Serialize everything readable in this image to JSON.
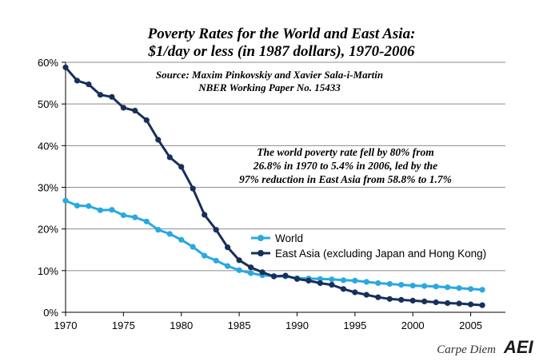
{
  "chart_data": {
    "type": "line",
    "title": "Poverty Rates for the World and East Asia:",
    "subtitle": "$1/day or less  (in 1987 dollars), 1970-2006",
    "source_lines": [
      "Source: Maxim Pinkovskiy and Xavier Sala-i-Martin",
      "NBER Working Paper No. 15433"
    ],
    "annotation_lines": [
      "The world poverty rate fell by 80% from",
      "26.8% in 1970 to 5.4% in 2006, led by the",
      "97% reduction in East Asia from 58.8% to 1.7%"
    ],
    "xlabel": "",
    "ylabel": "",
    "xlim": [
      1970,
      2008
    ],
    "ylim": [
      0,
      0.6
    ],
    "x_ticks": [
      1970,
      1975,
      1980,
      1985,
      1990,
      1995,
      2000,
      2005
    ],
    "y_ticks": [
      0,
      0.1,
      0.2,
      0.3,
      0.4,
      0.5,
      0.6
    ],
    "y_tick_labels": [
      "0%",
      "10%",
      "20%",
      "30%",
      "40%",
      "50%",
      "60%"
    ],
    "grid": true,
    "legend_position": "right-middle",
    "x": [
      1970,
      1971,
      1972,
      1973,
      1974,
      1975,
      1976,
      1977,
      1978,
      1979,
      1980,
      1981,
      1982,
      1983,
      1984,
      1985,
      1986,
      1987,
      1988,
      1989,
      1990,
      1991,
      1992,
      1993,
      1994,
      1995,
      1996,
      1997,
      1998,
      1999,
      2000,
      2001,
      2002,
      2003,
      2004,
      2005,
      2006
    ],
    "series": [
      {
        "name": "World",
        "color": "#29a9e0",
        "values": [
          0.268,
          0.256,
          0.255,
          0.245,
          0.246,
          0.233,
          0.228,
          0.218,
          0.198,
          0.188,
          0.174,
          0.157,
          0.136,
          0.124,
          0.111,
          0.101,
          0.094,
          0.089,
          0.087,
          0.086,
          0.082,
          0.081,
          0.08,
          0.079,
          0.077,
          0.076,
          0.073,
          0.07,
          0.068,
          0.066,
          0.064,
          0.063,
          0.062,
          0.06,
          0.058,
          0.056,
          0.054
        ]
      },
      {
        "name": "East Asia (excluding Japan and Hong Kong)",
        "color": "#17305a",
        "values": [
          0.588,
          0.556,
          0.547,
          0.522,
          0.517,
          0.491,
          0.484,
          0.461,
          0.414,
          0.372,
          0.349,
          0.297,
          0.234,
          0.198,
          0.156,
          0.125,
          0.108,
          0.096,
          0.086,
          0.088,
          0.08,
          0.076,
          0.07,
          0.066,
          0.056,
          0.048,
          0.042,
          0.036,
          0.032,
          0.03,
          0.028,
          0.026,
          0.024,
          0.022,
          0.021,
          0.019,
          0.017
        ]
      }
    ]
  },
  "branding": {
    "blog": "Carpe Diem",
    "logo": "AEI"
  }
}
